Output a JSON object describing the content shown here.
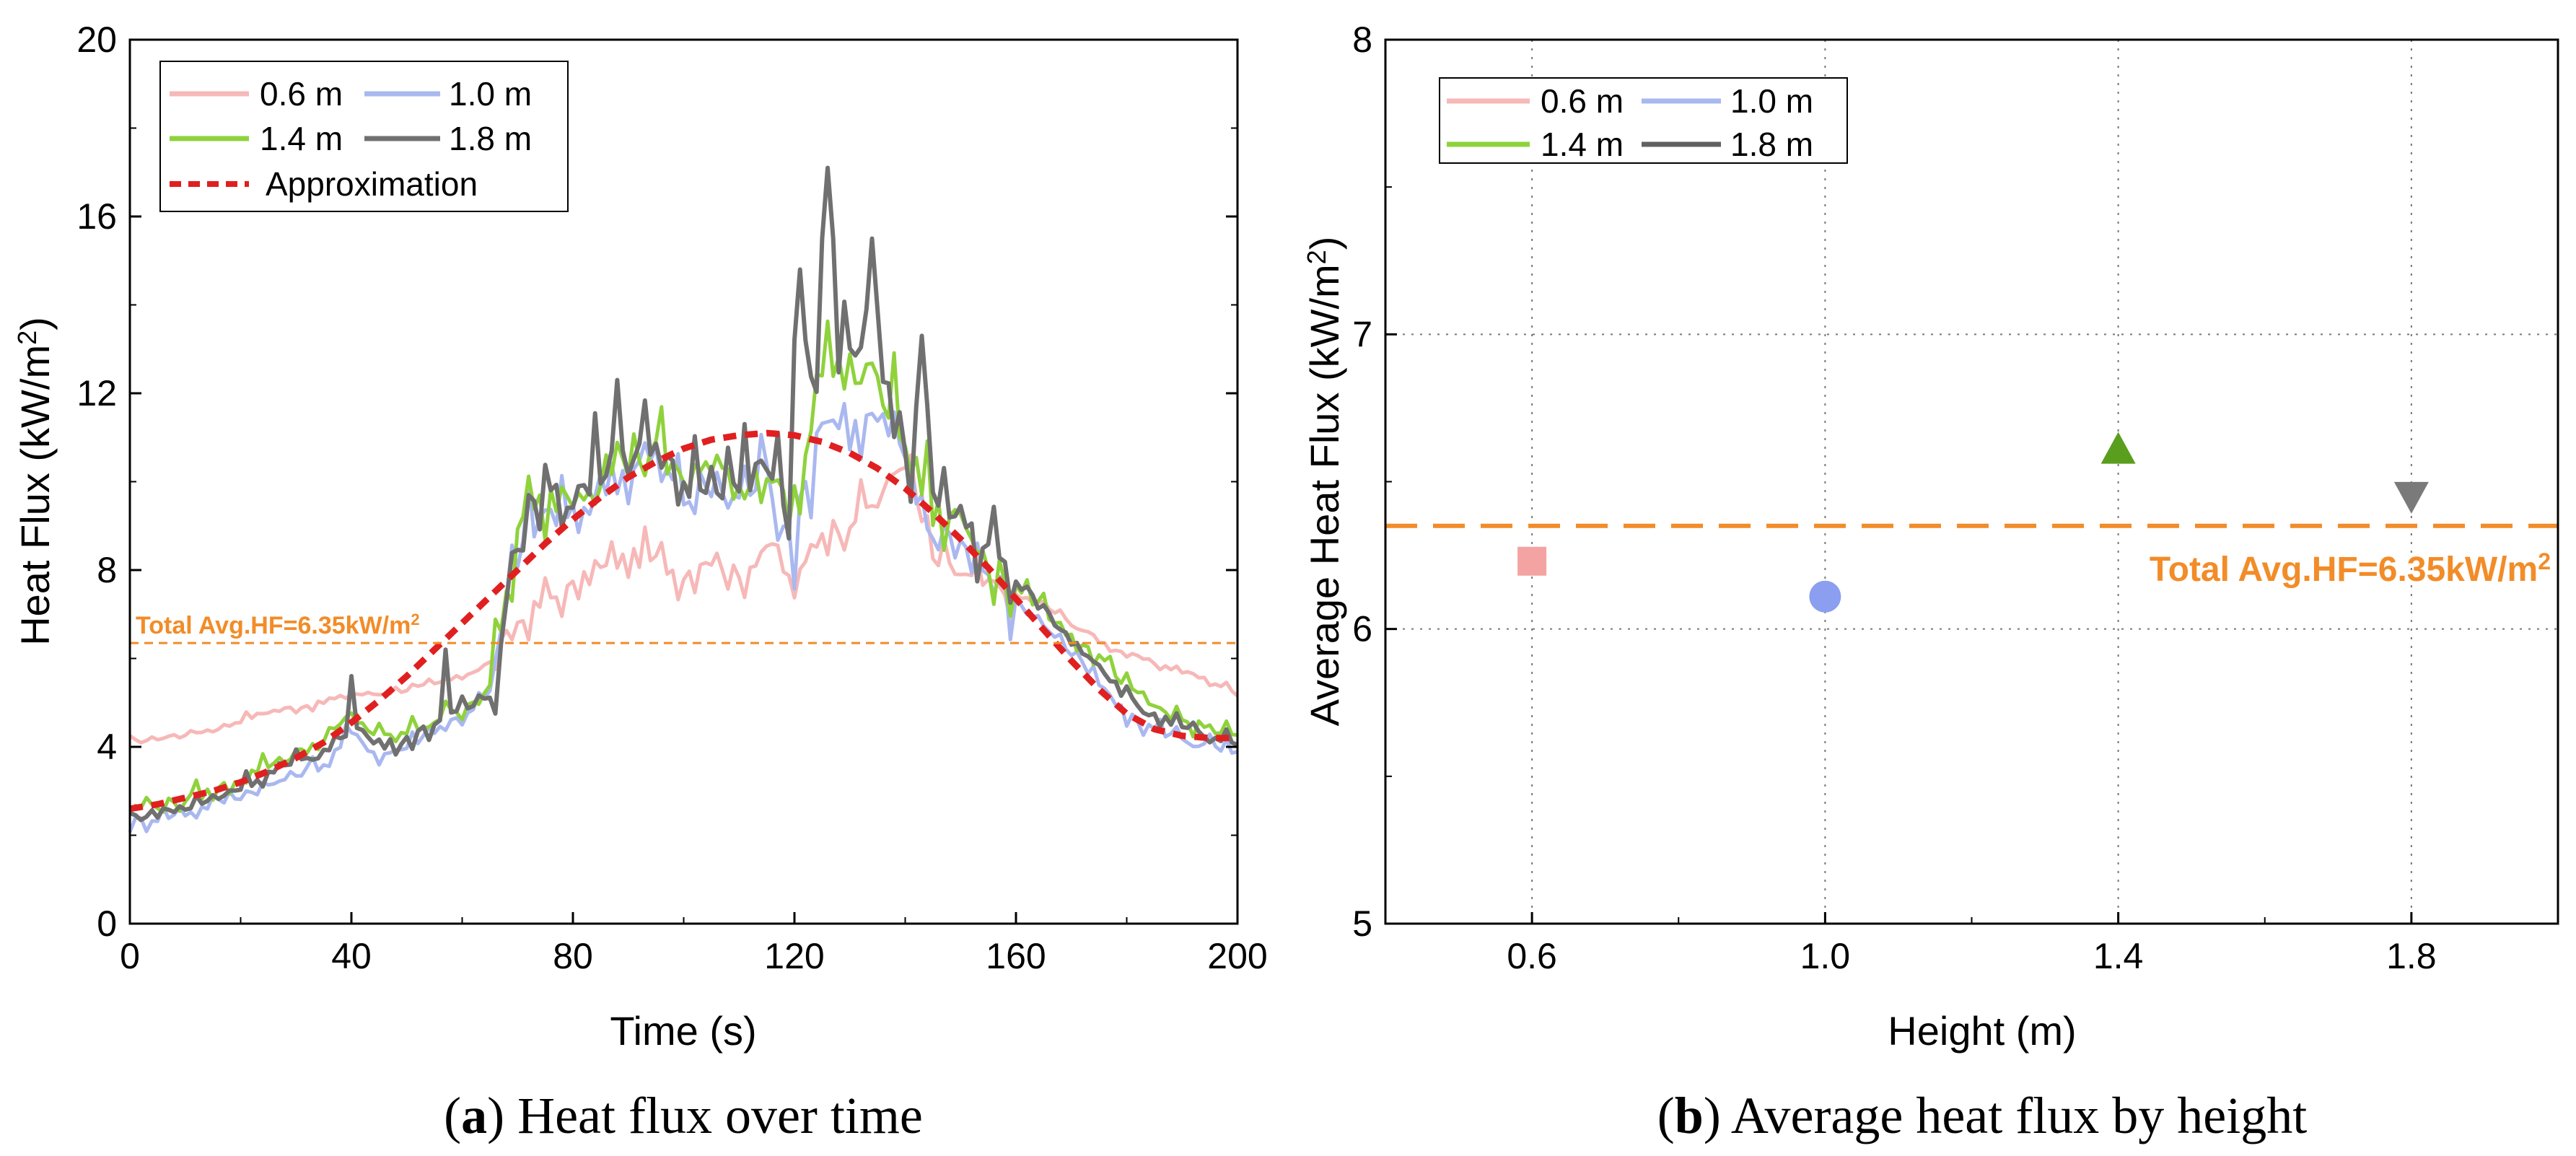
{
  "chart_data": [
    {
      "type": "line",
      "panel": "a",
      "xlabel": "Time (s)",
      "ylabel": "Heat Flux (kW/m2)",
      "ylabel_parts": [
        "Heat Flux (kW/m",
        "2",
        ")"
      ],
      "xlim": [
        0,
        200
      ],
      "ylim": [
        0,
        20
      ],
      "xticks": [
        0,
        40,
        80,
        120,
        160,
        200
      ],
      "yticks": [
        0,
        4,
        8,
        12,
        16,
        20
      ],
      "legend": [
        "0.6 m",
        "1.0 m",
        "1.4 m",
        "1.8 m",
        "Approximation"
      ],
      "reference_line": {
        "value": 6.35,
        "label_parts": [
          "Total Avg.HF=6.35kW/m",
          "2"
        ]
      },
      "x": [
        0,
        5,
        10,
        15,
        20,
        25,
        30,
        35,
        40,
        45,
        50,
        55,
        60,
        65,
        70,
        75,
        80,
        85,
        90,
        95,
        100,
        105,
        110,
        115,
        120,
        125,
        130,
        135,
        140,
        145,
        150,
        155,
        160,
        165,
        170,
        175,
        180,
        185,
        190,
        195,
        200
      ],
      "series": [
        {
          "name": "0.6 m",
          "color": "#f7b8b8",
          "values": [
            4.1,
            4.2,
            4.3,
            4.4,
            4.6,
            4.8,
            4.9,
            5.0,
            5.2,
            5.2,
            5.3,
            5.4,
            5.6,
            5.9,
            6.8,
            7.3,
            7.6,
            8.0,
            8.3,
            8.2,
            7.9,
            8.4,
            7.8,
            8.6,
            7.6,
            8.9,
            9.1,
            9.6,
            10.5,
            8.2,
            7.9,
            7.6,
            7.4,
            7.2,
            6.8,
            6.4,
            6.1,
            5.9,
            5.7,
            5.5,
            5.2
          ]
        },
        {
          "name": "1.0 m",
          "color": "#aab8f0",
          "values": [
            2.3,
            2.4,
            2.5,
            2.7,
            2.9,
            3.1,
            3.4,
            3.6,
            4.3,
            3.8,
            4.0,
            4.4,
            4.7,
            5.2,
            8.4,
            9.3,
            9.1,
            9.9,
            10.3,
            10.5,
            9.6,
            10.0,
            9.6,
            10.2,
            8.7,
            11.6,
            11.1,
            11.5,
            10.3,
            8.8,
            8.6,
            7.9,
            7.3,
            6.8,
            6.1,
            5.4,
            4.7,
            4.4,
            4.2,
            4.0,
            3.8
          ]
        },
        {
          "name": "1.4 m",
          "color": "#8fd23c",
          "values": [
            2.6,
            2.7,
            2.8,
            3.0,
            3.3,
            3.6,
            3.8,
            4.1,
            4.7,
            4.2,
            4.3,
            4.6,
            4.9,
            5.3,
            8.8,
            9.6,
            9.8,
            10.3,
            10.8,
            10.6,
            10.0,
            10.3,
            9.9,
            10.4,
            8.9,
            12.8,
            12.5,
            12.3,
            10.8,
            9.3,
            9.1,
            8.4,
            7.6,
            7.1,
            6.5,
            6.0,
            5.3,
            4.9,
            4.6,
            4.4,
            4.2
          ]
        },
        {
          "name": "1.8 m",
          "color": "#707070",
          "values": [
            2.4,
            2.5,
            2.6,
            2.8,
            3.1,
            3.4,
            3.6,
            3.9,
            4.5,
            4.0,
            4.2,
            4.5,
            4.8,
            5.2,
            8.7,
            9.5,
            9.7,
            10.2,
            10.7,
            10.5,
            9.9,
            10.2,
            9.8,
            10.3,
            8.8,
            13.0,
            12.7,
            12.6,
            10.9,
            9.4,
            9.2,
            8.5,
            7.7,
            7.1,
            6.4,
            5.9,
            5.1,
            4.7,
            4.4,
            4.2,
            4.0
          ]
        },
        {
          "name": "Approximation",
          "color": "#e02020",
          "dashed": true,
          "values": [
            2.6,
            2.7,
            2.85,
            3.0,
            3.2,
            3.45,
            3.75,
            4.1,
            4.55,
            5.05,
            5.6,
            6.2,
            6.8,
            7.4,
            8.0,
            8.6,
            9.15,
            9.65,
            10.1,
            10.45,
            10.75,
            10.95,
            11.05,
            11.1,
            11.05,
            10.9,
            10.65,
            10.3,
            9.85,
            9.3,
            8.7,
            8.05,
            7.35,
            6.65,
            5.95,
            5.3,
            4.75,
            4.4,
            4.25,
            4.2,
            4.2
          ]
        }
      ],
      "peaks": [
        {
          "series": "1.8 m",
          "x": 126,
          "y": 17.1
        },
        {
          "series": "1.8 m",
          "x": 134,
          "y": 15.5
        },
        {
          "series": "1.8 m",
          "x": 121,
          "y": 14.8
        },
        {
          "series": "1.8 m",
          "x": 143,
          "y": 13.3
        },
        {
          "series": "1.8 m",
          "x": 88,
          "y": 12.3
        },
        {
          "series": "1.8 m",
          "x": 40,
          "y": 5.6
        },
        {
          "series": "1.8 m",
          "x": 57,
          "y": 6.2
        }
      ]
    },
    {
      "type": "scatter",
      "panel": "b",
      "xlabel": "Height (m)",
      "ylabel": "Average Heat Flux (kW/m2)",
      "ylabel_parts": [
        "Average Heat Flux (kW/m",
        "2",
        ")"
      ],
      "xlim": [
        0.4,
        2.0
      ],
      "ylim": [
        5,
        8
      ],
      "xticks": [
        "0.6",
        "1.0",
        "1.4",
        "1.8"
      ],
      "yticks": [
        5,
        6,
        7,
        8
      ],
      "legend": [
        "0.6 m",
        "1.0 m",
        "1.4 m",
        "1.8 m"
      ],
      "reference_line": {
        "value": 6.35,
        "label_parts": [
          "Total Avg.HF=6.35kW/m",
          "2"
        ]
      },
      "points": [
        {
          "name": "0.6 m",
          "x": 0.6,
          "y": 6.23,
          "marker": "square",
          "color": "#f4a3a3"
        },
        {
          "name": "1.0 m",
          "x": 1.0,
          "y": 6.11,
          "marker": "circle",
          "color": "#8c9ef0"
        },
        {
          "name": "1.4 m",
          "x": 1.4,
          "y": 6.61,
          "marker": "triangle-up",
          "color": "#5a9e1e"
        },
        {
          "name": "1.8 m",
          "x": 1.8,
          "y": 6.45,
          "marker": "triangle-down",
          "color": "#7a7a7a"
        }
      ],
      "legend_colors": [
        "#f7b8b8",
        "#aab8f0",
        "#8fd23c",
        "#606060"
      ]
    }
  ],
  "captions": {
    "a": {
      "letter": "a",
      "text": ") Heat flux over time"
    },
    "b": {
      "letter": "b",
      "text": ") Average heat flux by height"
    }
  }
}
